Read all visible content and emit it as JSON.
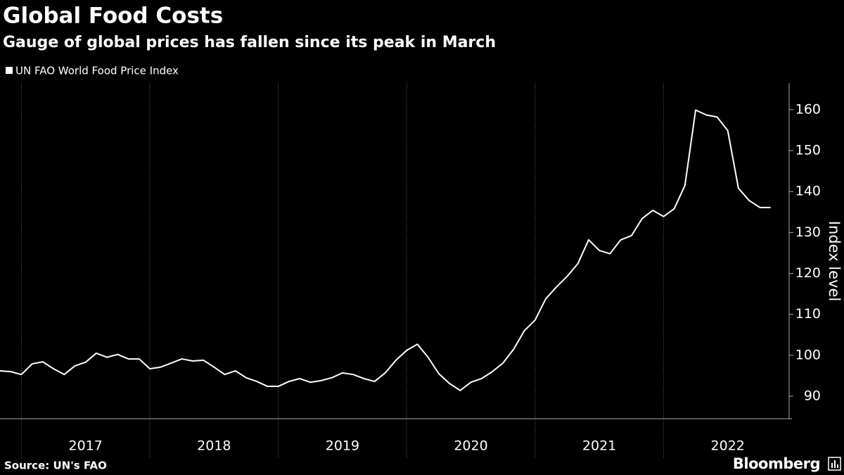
{
  "chart_data": {
    "type": "line",
    "title": "Global Food Costs",
    "subtitle": "Gauge of global prices has fallen since its peak in March",
    "y_label": "Index level",
    "source": "Source: UN's FAO",
    "brand": "Bloomberg",
    "x": [
      2016.8333,
      2016.9167,
      2017.0,
      2017.0833,
      2017.1667,
      2017.25,
      2017.3333,
      2017.4167,
      2017.5,
      2017.5833,
      2017.6667,
      2017.75,
      2017.8333,
      2017.9167,
      2018.0,
      2018.0833,
      2018.1667,
      2018.25,
      2018.3333,
      2018.4167,
      2018.5,
      2018.5833,
      2018.6667,
      2018.75,
      2018.8333,
      2018.9167,
      2019.0,
      2019.0833,
      2019.1667,
      2019.25,
      2019.3333,
      2019.4167,
      2019.5,
      2019.5833,
      2019.6667,
      2019.75,
      2019.8333,
      2019.9167,
      2020.0,
      2020.0833,
      2020.1667,
      2020.25,
      2020.3333,
      2020.4167,
      2020.5,
      2020.5833,
      2020.6667,
      2020.75,
      2020.8333,
      2020.9167,
      2021.0,
      2021.0833,
      2021.1667,
      2021.25,
      2021.3333,
      2021.4167,
      2021.5,
      2021.5833,
      2021.6667,
      2021.75,
      2021.8333,
      2021.9167,
      2022.0,
      2022.0833,
      2022.1667,
      2022.25,
      2022.3333,
      2022.4167,
      2022.5,
      2022.5833,
      2022.6667,
      2022.75,
      2022.8333
    ],
    "series": [
      {
        "name": "UN FAO World Food Price Index",
        "color": "#ffffff",
        "values": [
          96.2,
          96.0,
          95.3,
          97.9,
          98.4,
          96.7,
          95.3,
          97.4,
          98.3,
          100.5,
          99.5,
          100.2,
          99.1,
          99.1,
          96.7,
          97.1,
          98.1,
          99.1,
          98.6,
          98.8,
          97.1,
          95.3,
          96.2,
          94.5,
          93.6,
          92.4,
          92.4,
          93.6,
          94.3,
          93.4,
          93.8,
          94.5,
          95.7,
          95.3,
          94.3,
          93.6,
          95.7,
          98.8,
          101.2,
          102.7,
          99.5,
          95.5,
          93.1,
          91.4,
          93.4,
          94.3,
          96.0,
          98.1,
          101.5,
          106.0,
          108.6,
          113.8,
          116.7,
          119.3,
          122.4,
          128.2,
          125.6,
          124.8,
          128.2,
          129.2,
          133.4,
          135.4,
          133.9,
          135.8,
          141.5,
          159.9,
          158.7,
          158.2,
          154.9,
          140.8,
          137.8,
          136.1,
          136.1
        ]
      }
    ],
    "xlim": [
      2016.8333,
      2023
    ],
    "xticks": [
      {
        "value": 2017.5,
        "label": "2017"
      },
      {
        "value": 2018.5,
        "label": "2018"
      },
      {
        "value": 2019.5,
        "label": "2019"
      },
      {
        "value": 2020.5,
        "label": "2020"
      },
      {
        "value": 2021.5,
        "label": "2021"
      },
      {
        "value": 2022.5,
        "label": "2022"
      }
    ],
    "xgrid": [
      2017,
      2018,
      2019,
      2020,
      2021,
      2022
    ],
    "ylim": [
      84.5,
      166.5
    ],
    "yticks": [
      90,
      100,
      110,
      120,
      130,
      140,
      150,
      160
    ],
    "legend": "top-left"
  }
}
